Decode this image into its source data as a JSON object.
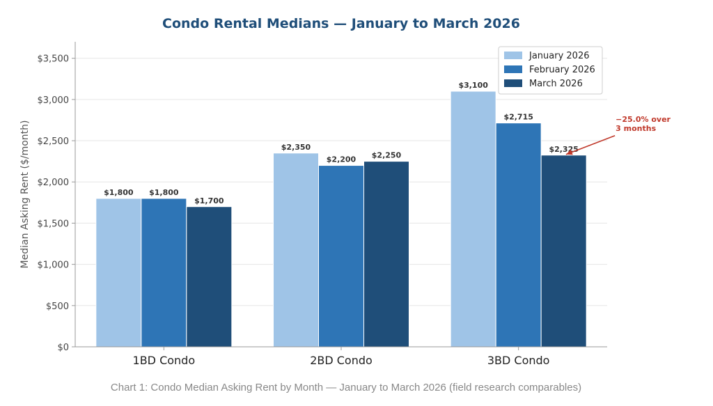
{
  "chart_data": {
    "type": "bar",
    "title": "Condo Rental Medians — January to March 2026",
    "ylabel": "Median Asking Rent ($/month)",
    "xlabel": "",
    "categories": [
      "1BD Condo",
      "2BD Condo",
      "3BD Condo"
    ],
    "series": [
      {
        "name": "January 2026",
        "values": [
          1800,
          2350,
          3100
        ],
        "labels": [
          "$1,800",
          "$2,350",
          "$3,100"
        ],
        "color": "#9fc4e7"
      },
      {
        "name": "February 2026",
        "values": [
          1800,
          2200,
          2715
        ],
        "labels": [
          "$1,800",
          "$2,200",
          "$2,715"
        ],
        "color": "#2e75b6"
      },
      {
        "name": "March 2026",
        "values": [
          1700,
          2250,
          2325
        ],
        "labels": [
          "$1,700",
          "$2,250",
          "$2,325"
        ],
        "color": "#1f4e79"
      }
    ],
    "ylim": [
      0,
      3700
    ],
    "yticks": [
      0,
      500,
      1000,
      1500,
      2000,
      2500,
      3000,
      3500
    ],
    "ytick_labels": [
      "$0",
      "$500",
      "$1,000",
      "$1,500",
      "$2,000",
      "$2,500",
      "$3,000",
      "$3,500"
    ],
    "grid": true,
    "legend_position": "top-right",
    "annotation": {
      "lines": [
        "−25.0% over",
        "3 months"
      ],
      "category": "3BD Condo",
      "series": "March 2026",
      "color": "#c0392b"
    },
    "caption": "Chart 1: Condo Median Asking Rent by Month — January to March 2026 (field research comparables)"
  }
}
